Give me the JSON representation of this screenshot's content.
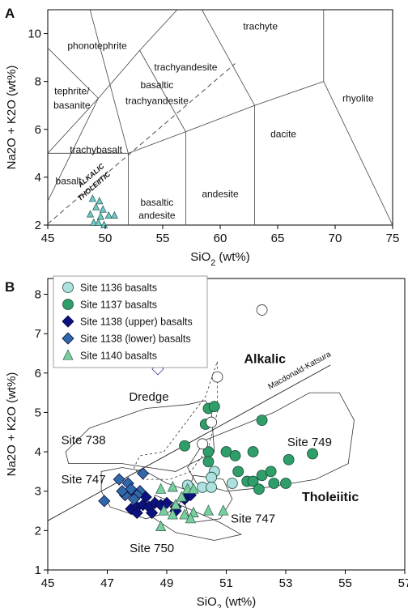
{
  "chart_data": [
    {
      "panel": "A",
      "type": "scatter",
      "xlabel": "SiO2 (wt%)",
      "ylabel": "Na2O + K2O (wt%)",
      "xlim": [
        45,
        75
      ],
      "ylim": [
        2,
        11
      ],
      "x_ticks": [
        45,
        50,
        55,
        60,
        65,
        70,
        75
      ],
      "y_ticks": [
        2,
        4,
        6,
        8,
        10
      ],
      "field_labels": [
        {
          "text": "phonotephrite",
          "x": 49.3,
          "y": 9.5
        },
        {
          "text": "trachyte",
          "x": 63.5,
          "y": 10.3
        },
        {
          "text": "trachyandesite",
          "x": 57.0,
          "y": 8.6
        },
        {
          "text": "tephrite/",
          "x": 47.1,
          "y": 7.6
        },
        {
          "text": "basanite",
          "x": 47.1,
          "y": 7.0
        },
        {
          "text": "basaltic",
          "x": 54.5,
          "y": 7.85
        },
        {
          "text": "trachyandesite",
          "x": 54.5,
          "y": 7.2
        },
        {
          "text": "rhyolite",
          "x": 72.0,
          "y": 7.3
        },
        {
          "text": "dacite",
          "x": 65.5,
          "y": 5.8
        },
        {
          "text": "trachybasalt",
          "x": 49.2,
          "y": 5.15
        },
        {
          "text": "basalt",
          "x": 46.8,
          "y": 3.85
        },
        {
          "text": "andesite",
          "x": 60.0,
          "y": 3.3
        },
        {
          "text": "basaltic",
          "x": 54.5,
          "y": 2.95
        },
        {
          "text": "andesite",
          "x": 54.5,
          "y": 2.4
        }
      ],
      "divider_labels": [
        "ALKALIC",
        "THOLEIITIC"
      ],
      "series": [
        {
          "marker": "triangle",
          "color": "#6fc7c9",
          "points": [
            [
              48.9,
              3.1
            ],
            [
              49.5,
              3.0
            ],
            [
              49.2,
              2.75
            ],
            [
              49.8,
              2.65
            ],
            [
              48.7,
              2.45
            ],
            [
              49.6,
              2.35
            ],
            [
              50.3,
              2.4
            ],
            [
              50.8,
              2.4
            ],
            [
              49.0,
              2.1
            ],
            [
              49.4,
              2.1
            ],
            [
              49.9,
              2.0
            ]
          ]
        }
      ]
    },
    {
      "panel": "B",
      "type": "scatter",
      "xlabel": "SiO2 (wt%)",
      "ylabel": "Na2O + K2O (wt%)",
      "xlim": [
        45,
        57
      ],
      "ylim": [
        1,
        8.4
      ],
      "x_ticks": [
        45,
        47,
        49,
        51,
        53,
        55,
        57
      ],
      "y_ticks": [
        1,
        2,
        3,
        4,
        5,
        6,
        7,
        8
      ],
      "legend_position": "top-left",
      "region_labels": [
        "Alkalic",
        "Tholeiitic",
        "Dredge",
        "Site 738",
        "Site 749",
        "Site 747",
        "Site 747",
        "Site 750"
      ],
      "line_label": "Macdonald-Katsura",
      "series": [
        {
          "name": "Site 1136 basalts",
          "marker": "circle",
          "color": "#aee0df",
          "points": [
            [
              50.6,
              3.5
            ],
            [
              50.5,
              3.35
            ],
            [
              49.7,
              3.15
            ],
            [
              50.2,
              3.1
            ],
            [
              50.5,
              3.1
            ],
            [
              51.2,
              3.2
            ]
          ]
        },
        {
          "name": "Site 1137 basalts",
          "marker": "circle",
          "color": "#2f9e68",
          "points": [
            [
              50.4,
              5.1
            ],
            [
              50.6,
              5.15
            ],
            [
              50.3,
              4.7
            ],
            [
              52.2,
              4.8
            ],
            [
              49.6,
              4.15
            ],
            [
              50.4,
              4.0
            ],
            [
              50.4,
              3.75
            ],
            [
              51.0,
              4.0
            ],
            [
              51.3,
              3.9
            ],
            [
              51.9,
              4.0
            ],
            [
              51.4,
              3.5
            ],
            [
              52.2,
              3.4
            ],
            [
              52.5,
              3.5
            ],
            [
              53.1,
              3.8
            ],
            [
              53.9,
              3.95
            ],
            [
              51.7,
              3.25
            ],
            [
              51.9,
              3.25
            ],
            [
              52.6,
              3.2
            ],
            [
              52.1,
              3.05
            ],
            [
              53.0,
              3.2
            ]
          ]
        },
        {
          "name": "Site 1138 (upper) basalts",
          "marker": "diamond",
          "color": "#0b1280",
          "points": [
            [
              47.8,
              2.55
            ],
            [
              48.0,
              2.6
            ],
            [
              48.2,
              2.65
            ],
            [
              48.4,
              2.6
            ],
            [
              48.6,
              2.7
            ],
            [
              48.8,
              2.65
            ],
            [
              49.0,
              2.7
            ],
            [
              48.5,
              2.45
            ],
            [
              48.0,
              2.45
            ],
            [
              49.3,
              2.6
            ],
            [
              49.3,
              2.5
            ],
            [
              49.6,
              2.8
            ],
            [
              49.8,
              2.9
            ],
            [
              48.3,
              2.85
            ]
          ]
        },
        {
          "name": "Site 1138 (lower) basalts",
          "marker": "diamond",
          "color": "#2f69a8",
          "points": [
            [
              46.9,
              2.75
            ],
            [
              47.6,
              2.9
            ],
            [
              47.4,
              3.3
            ],
            [
              47.7,
              3.2
            ],
            [
              47.8,
              3.05
            ],
            [
              48.2,
              3.45
            ],
            [
              48.1,
              3.0
            ],
            [
              48.0,
              2.9
            ],
            [
              47.5,
              3.0
            ],
            [
              47.9,
              2.8
            ]
          ]
        },
        {
          "name": "Site 1140 basalts",
          "marker": "triangle",
          "color": "#79ce9e",
          "points": [
            [
              48.8,
              3.05
            ],
            [
              49.2,
              3.1
            ],
            [
              49.7,
              3.05
            ],
            [
              49.9,
              3.05
            ],
            [
              49.5,
              2.85
            ],
            [
              49.3,
              2.65
            ],
            [
              48.9,
              2.5
            ],
            [
              49.2,
              2.4
            ],
            [
              49.6,
              2.4
            ],
            [
              49.9,
              2.45
            ],
            [
              50.4,
              2.5
            ],
            [
              50.9,
              2.5
            ],
            [
              49.8,
              2.3
            ],
            [
              48.8,
              2.1
            ]
          ]
        },
        {
          "name": "",
          "marker": "open-diamond",
          "color": "#ffffff",
          "points": [
            [
              48.7,
              6.1
            ]
          ]
        },
        {
          "name": "",
          "marker": "open-circle",
          "color": "#ffffff",
          "points": [
            [
              52.2,
              7.6
            ],
            [
              50.7,
              5.9
            ],
            [
              50.5,
              4.75
            ],
            [
              50.2,
              4.2
            ]
          ]
        }
      ]
    }
  ]
}
